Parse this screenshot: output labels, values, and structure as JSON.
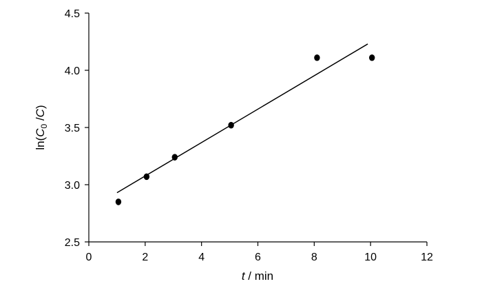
{
  "chart_data": {
    "type": "scatter",
    "title": "",
    "xlabel": {
      "italic": "t",
      "rest": " / min"
    },
    "ylabel": {
      "prefix": "ln(",
      "c": "C",
      "sub": "0",
      "slash": " /",
      "c2": "C",
      "suffix": ")"
    },
    "xlim": [
      0,
      12
    ],
    "ylim": [
      2.5,
      4.5
    ],
    "x_ticks": [
      0,
      2,
      4,
      6,
      8,
      10,
      12
    ],
    "x_tick_labels": [
      "0",
      "2",
      "4",
      "6",
      "8",
      "10",
      "12"
    ],
    "y_ticks": [
      2.5,
      3.0,
      3.5,
      4.0,
      4.5
    ],
    "y_tick_labels": [
      "2.5",
      "3.0",
      "3.5",
      "4.0",
      "4.5"
    ],
    "grid": false,
    "legend": "none",
    "points": [
      {
        "x": 1.05,
        "y": 2.85
      },
      {
        "x": 2.05,
        "y": 3.07
      },
      {
        "x": 3.05,
        "y": 3.24
      },
      {
        "x": 5.05,
        "y": 3.52
      },
      {
        "x": 8.1,
        "y": 4.11
      },
      {
        "x": 10.05,
        "y": 4.11
      }
    ],
    "fit_line": {
      "x": [
        1.0,
        9.9
      ],
      "y": [
        2.93,
        4.23
      ]
    },
    "colors": {
      "points": "#000000",
      "line": "#000000",
      "axes": "#000000"
    }
  }
}
